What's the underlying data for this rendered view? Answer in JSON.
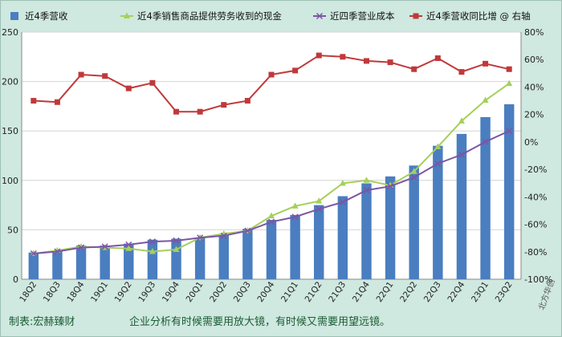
{
  "chart_data": {
    "type": "bar+line",
    "categories": [
      "18Q2",
      "18Q3",
      "18Q4",
      "19Q1",
      "19Q2",
      "19Q3",
      "19Q4",
      "20Q1",
      "20Q2",
      "20Q3",
      "20Q4",
      "21Q1",
      "21Q2",
      "21Q3",
      "21Q4",
      "22Q1",
      "22Q2",
      "22Q3",
      "22Q4",
      "23Q1",
      "23Q2"
    ],
    "left_axis": {
      "ylim": [
        0,
        250
      ],
      "ticks": [
        "0",
        "50",
        "100",
        "150",
        "200",
        "250"
      ]
    },
    "right_axis": {
      "ylim": [
        -100,
        80
      ],
      "ticks": [
        "-100%",
        "-80%",
        "-60%",
        "-40%",
        "-20%",
        "0%",
        "20%",
        "40%",
        "60%",
        "80%"
      ]
    },
    "series": [
      {
        "name": "近4季营收",
        "kind": "bar",
        "axis": "left",
        "color": "#4a7ec0",
        "values": [
          27,
          28,
          34,
          34,
          36,
          40,
          41,
          42,
          45,
          51,
          60,
          65,
          75,
          84,
          97,
          104,
          115,
          135,
          147,
          164,
          177
        ]
      },
      {
        "name": "近4季销售商品提供劳务收到的现金",
        "kind": "line",
        "axis": "left",
        "color": "#a6cf5b",
        "marker": "triangle",
        "values": [
          26,
          29,
          33,
          32,
          31,
          28,
          30,
          42,
          46,
          49,
          64,
          74,
          79,
          97,
          100,
          95,
          109,
          134,
          160,
          181,
          198
        ]
      },
      {
        "name": "近四季营业成本",
        "kind": "line",
        "axis": "left",
        "color": "#7b55a6",
        "marker": "x",
        "values": [
          26,
          28,
          32,
          33,
          35,
          38,
          39,
          42,
          44,
          49,
          58,
          63,
          71,
          78,
          90,
          94,
          103,
          117,
          126,
          139,
          150
        ]
      },
      {
        "name": "近4季营收同比增 @ 右轴",
        "kind": "line",
        "axis": "right",
        "color": "#c0393a",
        "marker": "square",
        "values": [
          30,
          29,
          49,
          48,
          39,
          43,
          22,
          22,
          27,
          30,
          49,
          52,
          63,
          62,
          59,
          58,
          53,
          61,
          51,
          57,
          53
        ]
      }
    ],
    "title": "",
    "xlabel": "",
    "ylabel": "",
    "legend_position": "top"
  },
  "footer": {
    "maker": "制表:宏赫臻财",
    "slogan": "企业分析有时候需要用放大镜，有时候又需要用望远镜。"
  },
  "watermark": "北方华创"
}
